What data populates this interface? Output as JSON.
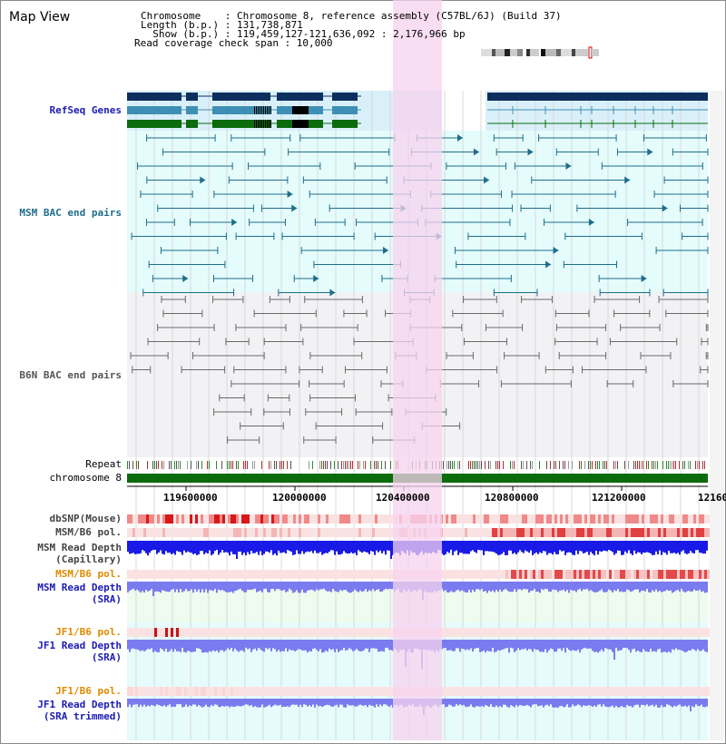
{
  "header": {
    "title": "Map View",
    "info_lines": [
      "Chromosome    : Chromosome 8, reference assembly (C57BL/6J) (Build 37)",
      "Length (b.p.) : 131,738,871",
      "  Show (b.p.) : 119,459,127-121,636,092 : 2,176,966 bp",
      "Read coverage check span : 10,000"
    ]
  },
  "tracks": {
    "refseq": {
      "label": "RefSeq Genes",
      "color": "#1b1bb5"
    },
    "msm_bac": {
      "label": "MSM BAC end pairs",
      "color": "#1e6e8a"
    },
    "b6n_bac": {
      "label": "B6N BAC end pairs",
      "color": "#555555"
    },
    "repeat": {
      "label": "Repeat"
    },
    "chromosome": {
      "label": "chromosome 8"
    },
    "dbsnp": {
      "label": "dbSNP(Mouse)"
    },
    "msm_pol_cap": {
      "label": "MSM/B6 pol."
    },
    "msm_depth_cap": {
      "label_line1": "MSM Read Depth",
      "label_line2": "(Capillary)"
    },
    "msm_pol_sra": {
      "label": "MSM/B6 pol.",
      "color": "#e08a00"
    },
    "msm_depth_sra": {
      "label_line1": "MSM Read Depth",
      "label_line2": "(SRA)",
      "color": "#1b1bb5"
    },
    "jf1_pol": {
      "label": "JF1/B6 pol.",
      "color": "#e08a00"
    },
    "jf1_depth": {
      "label_line1": "JF1 Read Depth",
      "label_line2": "(SRA)",
      "color": "#1b1bb5"
    },
    "jf1_pol_trim": {
      "label": "JF1/B6 pol.",
      "color": "#e08a00"
    },
    "jf1_depth_trim": {
      "label_line1": "JF1 Read Depth",
      "label_line2": "(SRA trimmed)",
      "color": "#1b1bb5"
    }
  },
  "axis": {
    "ticks": [
      "119600000",
      "120000000",
      "120400000",
      "120800000",
      "121200000",
      "12160"
    ]
  },
  "colors": {
    "highlight": "#f7d3ef",
    "refseq_bg": "#d9f0fa",
    "bac_bg": "#e4fcfc",
    "b6n_bg": "#f2f2f5",
    "gene_dark": "#0d2f5e",
    "gene_mid": "#3d8fb3",
    "gene_green": "#0c6b0c",
    "depth_blue": "#1a1ae6",
    "depth_light": "#7b7bf0",
    "snp_red": "#e04848"
  }
}
